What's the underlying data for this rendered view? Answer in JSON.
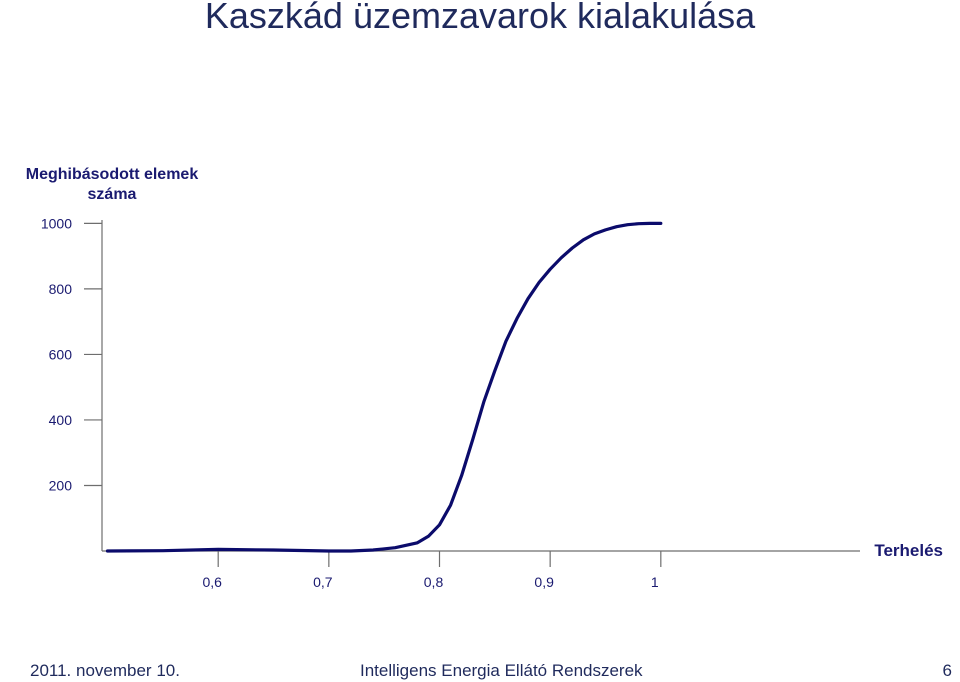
{
  "slide": {
    "title": "Kaszkád üzemzavarok kialakulása"
  },
  "footer": {
    "date": "2011. november 10.",
    "center": "Intelligens  Energia  Ellátó Rendszerek",
    "page": "6"
  },
  "chart_data": {
    "type": "line",
    "title": "",
    "ylabel_lines": [
      "Meghibásodott elemek",
      "száma"
    ],
    "xlabel": "Terhelés",
    "x_ticks": [
      "0,6",
      "0,7",
      "0,8",
      "0,9",
      "1"
    ],
    "x_tick_values": [
      0.6,
      0.7,
      0.8,
      0.9,
      1.0
    ],
    "y_ticks": [
      "1000",
      "800",
      "600",
      "400",
      "200"
    ],
    "y_tick_values": [
      1000,
      800,
      600,
      400,
      200
    ],
    "xlim": [
      0.495,
      1.18
    ],
    "ylim": [
      0,
      1050
    ],
    "grid": false,
    "colors": {
      "line": "#0b0b6b",
      "axis": "#6e6e6e",
      "text": "#1a1a70"
    },
    "series": [
      {
        "x": [
          0.5,
          0.55,
          0.6,
          0.65,
          0.7,
          0.72,
          0.74,
          0.76,
          0.78,
          0.79,
          0.8,
          0.81,
          0.82,
          0.83,
          0.84,
          0.85,
          0.86,
          0.87,
          0.88,
          0.89,
          0.9,
          0.91,
          0.92,
          0.93,
          0.94,
          0.95,
          0.96,
          0.97,
          0.98,
          0.99,
          1.0
        ],
        "y": [
          0,
          1,
          5,
          3,
          0,
          0,
          3,
          10,
          25,
          45,
          80,
          140,
          230,
          340,
          455,
          550,
          640,
          710,
          770,
          820,
          860,
          895,
          925,
          950,
          968,
          980,
          990,
          996,
          999,
          1000,
          1000
        ]
      }
    ]
  }
}
